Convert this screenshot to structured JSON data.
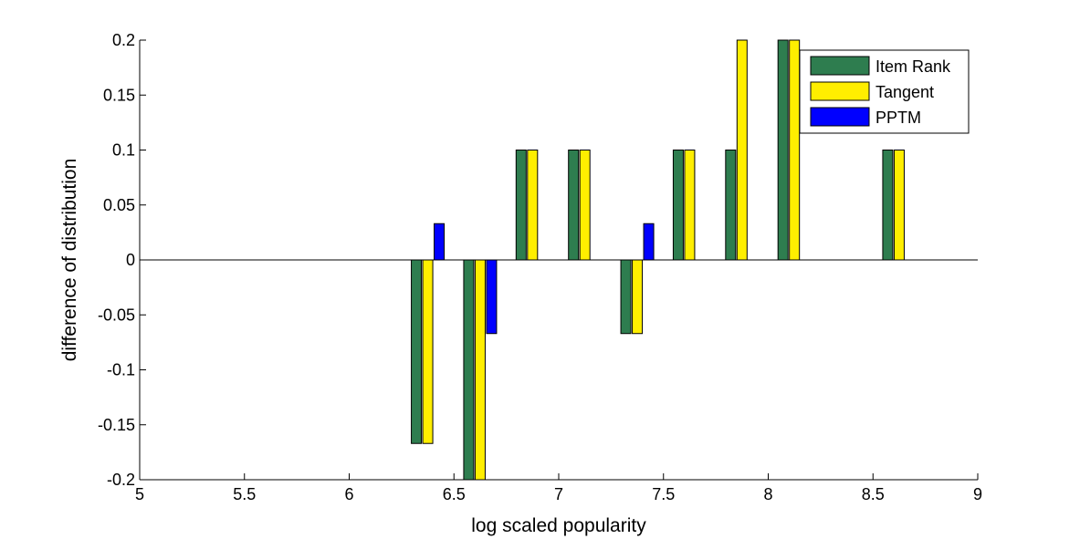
{
  "chart_data": {
    "type": "bar",
    "title": "",
    "xlabel": "log scaled popularity",
    "ylabel": "difference of distribution",
    "xlim": [
      5,
      9
    ],
    "ylim": [
      -0.2,
      0.2
    ],
    "xticks": [
      "5",
      "5.5",
      "6",
      "6.5",
      "7",
      "7.5",
      "8",
      "8.5",
      "9"
    ],
    "yticks": [
      "-0.2",
      "-0.15",
      "-0.1",
      "-0.05",
      "0",
      "0.05",
      "0.1",
      "0.15",
      "0.2"
    ],
    "x": [
      5.125,
      5.375,
      5.625,
      5.875,
      6.125,
      6.375,
      6.625,
      6.875,
      7.125,
      7.375,
      7.625,
      7.875,
      8.125,
      8.375,
      8.625,
      8.875
    ],
    "legend_position": "top-right",
    "grid": false,
    "series": [
      {
        "name": "Item Rank",
        "color": "#2e7d4f",
        "values": [
          0,
          0,
          0,
          0,
          0,
          -0.167,
          -0.2,
          0.1,
          0.1,
          -0.067,
          0.1,
          0.1,
          0.2,
          0,
          0.1,
          0
        ]
      },
      {
        "name": "Tangent",
        "color": "#ffee00",
        "values": [
          0,
          0,
          0,
          0,
          0,
          -0.167,
          -0.2,
          0.1,
          0.1,
          -0.067,
          0.1,
          0.2,
          0.2,
          0,
          0.1,
          0
        ]
      },
      {
        "name": "PPTM",
        "color": "#0000ff",
        "values": [
          0,
          0,
          0,
          0,
          0,
          0.033,
          -0.067,
          0,
          0,
          0.033,
          0,
          0,
          0,
          0,
          0,
          0
        ]
      }
    ]
  }
}
